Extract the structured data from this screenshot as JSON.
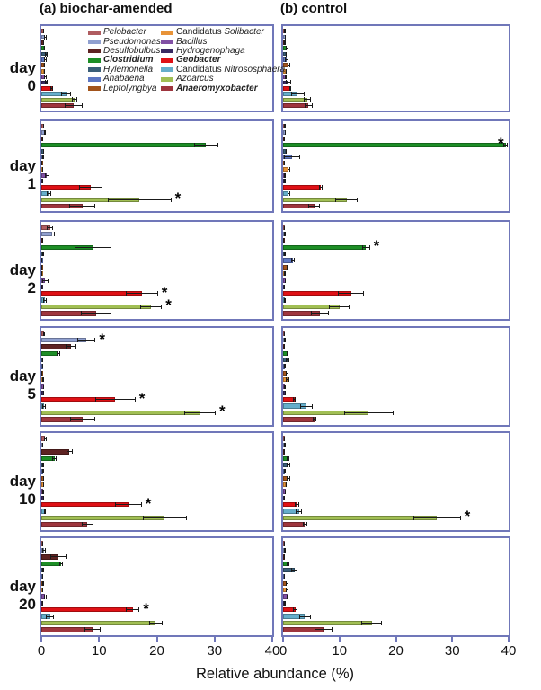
{
  "header": {
    "panel_a_title": "(a) biochar-amended",
    "panel_b_title": "(b) control"
  },
  "axis": {
    "xlabel": "Relative abundance (%)",
    "ticks": [
      "0",
      "10",
      "20",
      "30",
      "40"
    ],
    "xlim": [
      0,
      40
    ]
  },
  "colors": {
    "frame": "#7077b9",
    "error_bar": "#1a1a1a",
    "significance": "#000000"
  },
  "sig_marker": "*",
  "taxa": [
    {
      "label": "Pelobacter",
      "prefix": "",
      "color": "#b05c60",
      "bold": false
    },
    {
      "label": "Pseudomonas",
      "prefix": "",
      "color": "#90a0d0",
      "bold": false
    },
    {
      "label": "Desulfobulbus",
      "prefix": "",
      "color": "#5e2322",
      "bold": false
    },
    {
      "label": "Clostridium",
      "prefix": "",
      "color": "#1d8e26",
      "bold": true
    },
    {
      "label": "Hylemonella",
      "prefix": "",
      "color": "#3a5e78",
      "bold": false
    },
    {
      "label": "Anabaena",
      "prefix": "",
      "color": "#5d77c3",
      "bold": false
    },
    {
      "label": "Leptolyngbya",
      "prefix": "",
      "color": "#a2541b",
      "bold": false
    },
    {
      "label": "Solibacter",
      "prefix": "Candidatus ",
      "color": "#e89338",
      "bold": false
    },
    {
      "label": "Bacillus",
      "prefix": "",
      "color": "#8150a5",
      "bold": false
    },
    {
      "label": "Hydrogenophaga",
      "prefix": "",
      "color": "#392a62",
      "bold": false
    },
    {
      "label": "Geobacter",
      "prefix": "",
      "color": "#df1116",
      "bold": true
    },
    {
      "label": "Nitrososphaera",
      "prefix": "Candidatus ",
      "color": "#66aecb",
      "bold": false
    },
    {
      "label": "Azoarcus",
      "prefix": "",
      "color": "#a1bf54",
      "bold": false
    },
    {
      "label": "Anaeromyxobacter",
      "prefix": "",
      "color": "#9e353d",
      "bold": true
    }
  ],
  "chart_data": {
    "type": "bar",
    "orientation": "horizontal",
    "xlim": [
      0,
      40
    ],
    "xlabel": "Relative abundance (%)",
    "legend_position": "top-left of day 0 biochar-amended panel",
    "categories": [
      "Pelobacter",
      "Pseudomonas",
      "Desulfobulbus",
      "Clostridium",
      "Hylemonella",
      "Anabaena",
      "Leptolyngbya",
      "Candidatus Solibacter",
      "Bacillus",
      "Hydrogenophaga",
      "Geobacter",
      "Candidatus Nitrososphaera",
      "Azoarcus",
      "Anaeromyxobacter"
    ],
    "rows": [
      {
        "day": "day 0",
        "series": [
          {
            "panel": "biochar-amended",
            "values": [
              0.4,
              0.7,
              0.4,
              0.5,
              0.9,
              0.7,
              0.5,
              0.5,
              0.7,
              0.9,
              1.8,
              4.3,
              5.8,
              5.6
            ],
            "errors": [
              0.1,
              0.2,
              0.1,
              0.1,
              0.2,
              0.2,
              0.1,
              0.1,
              0.2,
              0.2,
              0.3,
              0.9,
              0.5,
              1.5
            ],
            "sig": []
          },
          {
            "panel": "control",
            "values": [
              0.3,
              0.4,
              0.3,
              0.7,
              0.5,
              0.6,
              1.0,
              0.5,
              0.5,
              0.9,
              1.3,
              2.6,
              4.3,
              4.5
            ],
            "errors": [
              0.1,
              0.1,
              0.1,
              0.2,
              0.1,
              0.3,
              0.2,
              0.1,
              0.2,
              0.5,
              0.2,
              1.2,
              0.6,
              0.7
            ],
            "sig": []
          }
        ]
      },
      {
        "day": "day 1",
        "series": [
          {
            "panel": "biochar-amended",
            "values": [
              0.4,
              0.6,
              0.2,
              28.5,
              0.4,
              0.3,
              0.1,
              0.2,
              1.0,
              0.2,
              8.6,
              1.3,
              17.0,
              7.1
            ],
            "errors": [
              0.1,
              0.2,
              0.05,
              2.1,
              0.1,
              0.1,
              0.05,
              0.1,
              0.4,
              0.1,
              2.0,
              0.4,
              5.5,
              2.3
            ],
            "sig": [
              12
            ]
          },
          {
            "panel": "control",
            "values": [
              0.3,
              0.4,
              0.2,
              39.5,
              0.5,
              1.6,
              0.2,
              1.0,
              0.3,
              0.3,
              6.7,
              1.0,
              11.3,
              5.5
            ],
            "errors": [
              0.1,
              0.1,
              0.05,
              0.4,
              0.1,
              1.5,
              0.05,
              0.2,
              0.1,
              0.1,
              0.3,
              0.2,
              2.0,
              1.1
            ],
            "sig": [
              3
            ]
          }
        ]
      },
      {
        "day": "day 2",
        "series": [
          {
            "panel": "biochar-amended",
            "values": [
              1.5,
              1.8,
              0.2,
              9.0,
              0.3,
              0.1,
              0.1,
              0.1,
              0.7,
              0.1,
              17.4,
              0.6,
              19.0,
              9.5
            ],
            "errors": [
              0.5,
              0.6,
              0.1,
              3.2,
              0.1,
              0.05,
              0.05,
              0.05,
              0.5,
              0.05,
              2.8,
              0.3,
              1.9,
              2.7
            ],
            "sig": [
              10,
              12
            ]
          },
          {
            "panel": "control",
            "values": [
              0.2,
              0.3,
              0.1,
              14.7,
              0.3,
              1.7,
              0.8,
              0.3,
              0.4,
              0.2,
              12.1,
              0.3,
              10.0,
              6.6
            ],
            "errors": [
              0.1,
              0.1,
              0.05,
              0.7,
              0.1,
              0.3,
              0.2,
              0.1,
              0.1,
              0.05,
              2.3,
              0.1,
              1.8,
              1.6
            ],
            "sig": [
              3
            ]
          }
        ]
      },
      {
        "day": "day 5",
        "series": [
          {
            "panel": "biochar-amended",
            "values": [
              0.5,
              7.8,
              5.1,
              2.9,
              0.2,
              0.2,
              0.1,
              0.3,
              0.4,
              0.4,
              12.8,
              0.5,
              27.5,
              7.2
            ],
            "errors": [
              0.2,
              1.6,
              0.9,
              0.3,
              0.1,
              0.1,
              0.05,
              0.1,
              0.1,
              0.1,
              3.5,
              0.3,
              2.7,
              2.2
            ],
            "sig": [
              1,
              10,
              12
            ]
          },
          {
            "panel": "control",
            "values": [
              0.2,
              0.3,
              0.2,
              0.8,
              0.8,
              0.3,
              0.7,
              0.8,
              0.3,
              0.4,
              2.0,
              4.1,
              15.2,
              5.6
            ],
            "errors": [
              0.05,
              0.1,
              0.05,
              0.2,
              0.3,
              0.1,
              0.2,
              0.3,
              0.1,
              0.1,
              0.3,
              1.1,
              4.4,
              0.3
            ],
            "sig": []
          }
        ]
      },
      {
        "day": "day 10",
        "series": [
          {
            "panel": "biochar-amended",
            "values": [
              0.7,
              0.2,
              4.9,
              2.3,
              0.3,
              0.3,
              0.4,
              0.4,
              0.3,
              0.4,
              15.1,
              0.6,
              21.4,
              8.0
            ],
            "errors": [
              0.3,
              0.1,
              0.6,
              0.4,
              0.1,
              0.1,
              0.1,
              0.1,
              0.1,
              0.1,
              2.3,
              0.2,
              3.8,
              1.0
            ],
            "sig": [
              10
            ]
          },
          {
            "panel": "control",
            "values": [
              0.2,
              0.3,
              0.2,
              0.9,
              1.0,
              0.3,
              0.9,
              0.5,
              0.4,
              0.2,
              2.4,
              2.8,
              27.3,
              3.9
            ],
            "errors": [
              0.05,
              0.1,
              0.05,
              0.2,
              0.3,
              0.1,
              0.3,
              0.1,
              0.1,
              0.05,
              0.4,
              0.5,
              4.2,
              0.4
            ],
            "sig": [
              12
            ]
          }
        ]
      },
      {
        "day": "day 20",
        "series": [
          {
            "panel": "biochar-amended",
            "values": [
              0.2,
              0.5,
              2.9,
              3.4,
              0.3,
              0.2,
              0.3,
              0.2,
              0.7,
              0.2,
              15.8,
              1.5,
              19.8,
              8.9
            ],
            "errors": [
              0.05,
              0.3,
              1.4,
              0.3,
              0.1,
              0.05,
              0.1,
              0.05,
              0.3,
              0.05,
              1.2,
              0.7,
              1.2,
              1.4
            ],
            "sig": [
              10
            ]
          },
          {
            "panel": "control",
            "values": [
              0.2,
              0.3,
              0.2,
              0.9,
              2.0,
              0.2,
              0.7,
              0.7,
              0.8,
              0.3,
              2.2,
              3.9,
              15.7,
              7.1
            ],
            "errors": [
              0.05,
              0.1,
              0.05,
              0.2,
              0.6,
              0.05,
              0.2,
              0.2,
              0.2,
              0.1,
              0.4,
              1.1,
              1.9,
              1.6
            ],
            "sig": []
          }
        ]
      }
    ]
  }
}
